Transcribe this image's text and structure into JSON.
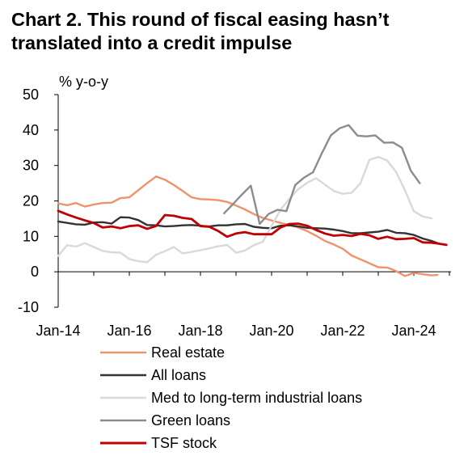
{
  "title_line1": "Chart 2. This round of fiscal easing hasn’t",
  "title_line2": "translated into a credit impulse",
  "chart_data": {
    "type": "line",
    "title": "Chart 2. This round of fiscal easing hasn’t translated into a credit impulse",
    "ylabel": "% y-o-y",
    "ylim": [
      -10,
      50
    ],
    "yticks": [
      -10,
      0,
      10,
      20,
      30,
      40,
      50
    ],
    "xlim": [
      "2014-01",
      "2024-12"
    ],
    "xtick_labels": [
      "Jan-14",
      "Jan-16",
      "Jan-18",
      "Jan-20",
      "Jan-22",
      "Jan-24"
    ],
    "legend_position": "bottom",
    "series": [
      {
        "name": "Real estate",
        "color": "#f0926a",
        "points": [
          [
            "2014-01",
            19.3
          ],
          [
            "2014-04",
            18.8
          ],
          [
            "2014-07",
            19.4
          ],
          [
            "2014-10",
            18.4
          ],
          [
            "2015-01",
            19.0
          ],
          [
            "2015-04",
            19.4
          ],
          [
            "2015-07",
            19.5
          ],
          [
            "2015-10",
            20.8
          ],
          [
            "2016-01",
            21.0
          ],
          [
            "2016-04",
            23.0
          ],
          [
            "2016-07",
            25.0
          ],
          [
            "2016-10",
            26.9
          ],
          [
            "2017-01",
            26.0
          ],
          [
            "2017-04",
            24.5
          ],
          [
            "2017-07",
            22.8
          ],
          [
            "2017-10",
            21.0
          ],
          [
            "2018-01",
            20.5
          ],
          [
            "2018-04",
            20.4
          ],
          [
            "2018-07",
            20.2
          ],
          [
            "2018-10",
            19.7
          ],
          [
            "2019-01",
            18.7
          ],
          [
            "2019-04",
            17.6
          ],
          [
            "2019-07",
            16.3
          ],
          [
            "2019-10",
            15.2
          ],
          [
            "2020-01",
            14.5
          ],
          [
            "2020-04",
            13.8
          ],
          [
            "2020-07",
            13.2
          ],
          [
            "2020-10",
            12.5
          ],
          [
            "2021-01",
            11.5
          ],
          [
            "2021-04",
            10.2
          ],
          [
            "2021-07",
            8.7
          ],
          [
            "2021-10",
            7.7
          ],
          [
            "2022-01",
            6.5
          ],
          [
            "2022-04",
            4.6
          ],
          [
            "2022-07",
            3.5
          ],
          [
            "2022-10",
            2.4
          ],
          [
            "2023-01",
            1.3
          ],
          [
            "2023-04",
            1.2
          ],
          [
            "2023-07",
            0.2
          ],
          [
            "2023-10",
            -1.2
          ],
          [
            "2024-01",
            -0.3
          ],
          [
            "2024-04",
            -0.7
          ],
          [
            "2024-07",
            -1.0
          ],
          [
            "2024-09",
            -0.9
          ]
        ]
      },
      {
        "name": "All loans",
        "color": "#333333",
        "points": [
          [
            "2014-01",
            14.2
          ],
          [
            "2014-04",
            13.8
          ],
          [
            "2014-07",
            13.4
          ],
          [
            "2014-10",
            13.3
          ],
          [
            "2015-01",
            13.9
          ],
          [
            "2015-04",
            14.0
          ],
          [
            "2015-07",
            13.6
          ],
          [
            "2015-10",
            15.4
          ],
          [
            "2016-01",
            15.3
          ],
          [
            "2016-04",
            14.6
          ],
          [
            "2016-07",
            13.2
          ],
          [
            "2016-10",
            13.1
          ],
          [
            "2017-01",
            12.8
          ],
          [
            "2017-04",
            12.9
          ],
          [
            "2017-07",
            13.1
          ],
          [
            "2017-10",
            13.2
          ],
          [
            "2018-01",
            13.0
          ],
          [
            "2018-04",
            12.8
          ],
          [
            "2018-07",
            13.1
          ],
          [
            "2018-10",
            13.1
          ],
          [
            "2019-01",
            13.4
          ],
          [
            "2019-04",
            13.5
          ],
          [
            "2019-07",
            12.7
          ],
          [
            "2019-10",
            12.4
          ],
          [
            "2020-01",
            12.3
          ],
          [
            "2020-04",
            13.0
          ],
          [
            "2020-07",
            13.1
          ],
          [
            "2020-10",
            12.8
          ],
          [
            "2021-01",
            12.4
          ],
          [
            "2021-04",
            12.3
          ],
          [
            "2021-07",
            12.2
          ],
          [
            "2021-10",
            11.9
          ],
          [
            "2022-01",
            11.5
          ],
          [
            "2022-04",
            10.9
          ],
          [
            "2022-07",
            10.9
          ],
          [
            "2022-10",
            11.1
          ],
          [
            "2023-01",
            11.3
          ],
          [
            "2023-04",
            11.8
          ],
          [
            "2023-07",
            11.0
          ],
          [
            "2023-10",
            10.9
          ],
          [
            "2024-01",
            10.4
          ],
          [
            "2024-04",
            9.4
          ],
          [
            "2024-07",
            8.7
          ],
          [
            "2024-09",
            8.1
          ]
        ]
      },
      {
        "name": "Med to long-term industrial loans",
        "color": "#d9d9d9",
        "points": [
          [
            "2014-01",
            4.5
          ],
          [
            "2014-04",
            7.5
          ],
          [
            "2014-07",
            7.1
          ],
          [
            "2014-10",
            8.1
          ],
          [
            "2015-01",
            7.0
          ],
          [
            "2015-04",
            5.9
          ],
          [
            "2015-07",
            5.5
          ],
          [
            "2015-10",
            5.4
          ],
          [
            "2016-01",
            3.6
          ],
          [
            "2016-04",
            3.0
          ],
          [
            "2016-07",
            2.7
          ],
          [
            "2016-10",
            4.8
          ],
          [
            "2017-01",
            5.8
          ],
          [
            "2017-04",
            7.0
          ],
          [
            "2017-07",
            5.2
          ],
          [
            "2017-10",
            5.6
          ],
          [
            "2018-01",
            6.1
          ],
          [
            "2018-04",
            6.6
          ],
          [
            "2018-07",
            7.2
          ],
          [
            "2018-10",
            7.6
          ],
          [
            "2019-01",
            5.4
          ],
          [
            "2019-04",
            6.0
          ],
          [
            "2019-07",
            7.5
          ],
          [
            "2019-10",
            8.4
          ],
          [
            "2020-01",
            13.0
          ],
          [
            "2020-04",
            17.5
          ],
          [
            "2020-07",
            20.6
          ],
          [
            "2020-10",
            23.3
          ],
          [
            "2021-01",
            25.1
          ],
          [
            "2021-04",
            26.4
          ],
          [
            "2021-07",
            24.6
          ],
          [
            "2021-10",
            22.8
          ],
          [
            "2022-01",
            22.0
          ],
          [
            "2022-04",
            22.3
          ],
          [
            "2022-07",
            25.0
          ],
          [
            "2022-10",
            31.6
          ],
          [
            "2023-01",
            32.4
          ],
          [
            "2023-04",
            31.4
          ],
          [
            "2023-07",
            28.2
          ],
          [
            "2023-10",
            23.0
          ],
          [
            "2024-01",
            17.1
          ],
          [
            "2024-04",
            15.6
          ],
          [
            "2024-07",
            15.1
          ]
        ]
      },
      {
        "name": "Green loans",
        "color": "#8c8c8c",
        "points": [
          [
            "2018-09",
            16.5
          ],
          [
            "2018-12",
            19.1
          ],
          [
            "2019-03",
            21.8
          ],
          [
            "2019-06",
            24.3
          ],
          [
            "2019-09",
            13.5
          ],
          [
            "2019-12",
            16.3
          ],
          [
            "2020-03",
            17.5
          ],
          [
            "2020-06",
            17.1
          ],
          [
            "2020-09",
            24.5
          ],
          [
            "2020-12",
            26.6
          ],
          [
            "2021-03",
            28.1
          ],
          [
            "2021-06",
            33.5
          ],
          [
            "2021-09",
            38.5
          ],
          [
            "2021-12",
            40.5
          ],
          [
            "2022-03",
            41.4
          ],
          [
            "2022-06",
            38.4
          ],
          [
            "2022-09",
            38.2
          ],
          [
            "2022-12",
            38.5
          ],
          [
            "2023-03",
            36.4
          ],
          [
            "2023-06",
            36.5
          ],
          [
            "2023-09",
            35.0
          ],
          [
            "2023-12",
            28.5
          ],
          [
            "2024-03",
            25.0
          ]
        ]
      },
      {
        "name": "TSF stock",
        "color": "#c00000",
        "points": [
          [
            "2014-01",
            17.2
          ],
          [
            "2014-04",
            16.2
          ],
          [
            "2014-07",
            15.3
          ],
          [
            "2014-10",
            14.5
          ],
          [
            "2015-01",
            13.8
          ],
          [
            "2015-04",
            12.5
          ],
          [
            "2015-07",
            12.8
          ],
          [
            "2015-10",
            12.3
          ],
          [
            "2016-01",
            12.9
          ],
          [
            "2016-04",
            13.1
          ],
          [
            "2016-07",
            12.1
          ],
          [
            "2016-10",
            12.9
          ],
          [
            "2017-01",
            16.0
          ],
          [
            "2017-04",
            15.8
          ],
          [
            "2017-07",
            15.2
          ],
          [
            "2017-10",
            14.9
          ],
          [
            "2018-01",
            12.9
          ],
          [
            "2018-04",
            12.7
          ],
          [
            "2018-07",
            11.5
          ],
          [
            "2018-10",
            9.9
          ],
          [
            "2019-01",
            10.8
          ],
          [
            "2019-04",
            11.2
          ],
          [
            "2019-07",
            10.6
          ],
          [
            "2019-10",
            10.6
          ],
          [
            "2020-01",
            10.6
          ],
          [
            "2020-04",
            12.5
          ],
          [
            "2020-07",
            13.5
          ],
          [
            "2020-10",
            13.6
          ],
          [
            "2021-01",
            13.0
          ],
          [
            "2021-04",
            11.8
          ],
          [
            "2021-07",
            10.8
          ],
          [
            "2021-10",
            10.2
          ],
          [
            "2022-01",
            10.4
          ],
          [
            "2022-04",
            10.1
          ],
          [
            "2022-07",
            10.7
          ],
          [
            "2022-10",
            10.3
          ],
          [
            "2023-01",
            9.3
          ],
          [
            "2023-04",
            9.9
          ],
          [
            "2023-07",
            9.2
          ],
          [
            "2023-10",
            9.3
          ],
          [
            "2024-01",
            9.5
          ],
          [
            "2024-04",
            8.3
          ],
          [
            "2024-07",
            8.2
          ],
          [
            "2024-09",
            8.0
          ],
          [
            "2024-12",
            7.6
          ]
        ]
      }
    ]
  }
}
